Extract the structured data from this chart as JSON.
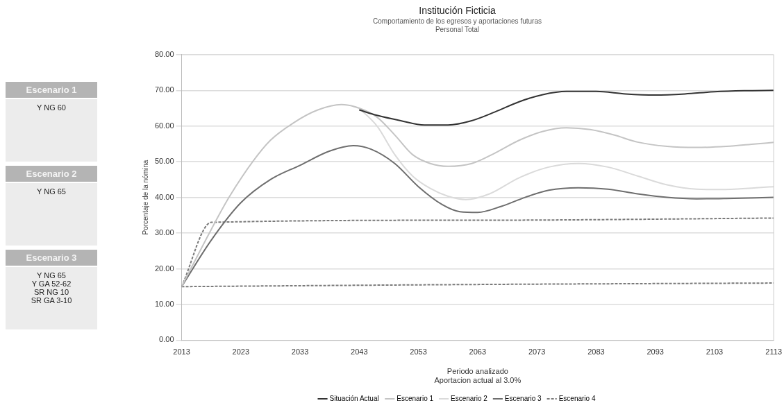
{
  "chart_data": {
    "type": "line",
    "title": "Institución Ficticia",
    "subtitle": "Comportamiento de los egresos y aportaciones futuras\nPersonal Total",
    "xlabel": "Periodo analizado\nAportacion actual al 3.0%",
    "ylabel": "Porcentaje de la nómina",
    "xlim": [
      2013,
      2113
    ],
    "xticks": [
      2013,
      2023,
      2033,
      2043,
      2053,
      2063,
      2073,
      2083,
      2093,
      2103,
      2113
    ],
    "ylim": [
      0,
      80
    ],
    "yticks": [
      {
        "value": 0,
        "label": "0.00"
      },
      {
        "value": 10,
        "label": "10.00"
      },
      {
        "value": 20,
        "label": "20.00"
      },
      {
        "value": 30,
        "label": "30.00"
      },
      {
        "value": 40,
        "label": "40.00"
      },
      {
        "value": 50,
        "label": "50.00"
      },
      {
        "value": 60,
        "label": "60.00"
      },
      {
        "value": 70,
        "label": "70.00"
      },
      {
        "value": 80,
        "label": "80.00"
      }
    ],
    "grid": "y",
    "legend": "bottom",
    "marker": "none",
    "series": [
      {
        "name": "Situación Actual",
        "color": "#333333",
        "line_style": "solid",
        "x": [
          2043,
          2046,
          2050,
          2054,
          2058,
          2062,
          2066,
          2070,
          2074,
          2078,
          2083,
          2088,
          2093,
          2098,
          2103,
          2108,
          2113
        ],
        "values": [
          64.5,
          63,
          61.5,
          60.3,
          60.3,
          61.5,
          64,
          66.8,
          68.8,
          69.7,
          69.7,
          69,
          68.7,
          69,
          69.6,
          69.9,
          70
        ]
      },
      {
        "name": "Escenario 1",
        "color": "#c4c4c4",
        "line_style": "solid",
        "x": [
          2013,
          2018,
          2021,
          2025,
          2028,
          2032,
          2036,
          2040,
          2043,
          2046,
          2049,
          2052,
          2055,
          2058,
          2062,
          2066,
          2070,
          2074,
          2078,
          2082,
          2086,
          2090,
          2095,
          2100,
          2105,
          2110,
          2113
        ],
        "values": [
          15,
          31,
          40,
          50,
          56,
          61,
          64.5,
          66,
          65,
          62.5,
          57.5,
          52,
          49.5,
          48.7,
          49.5,
          52.5,
          56,
          58.5,
          59.5,
          59,
          57.5,
          55.5,
          54.3,
          54,
          54.3,
          55,
          55.4
        ]
      },
      {
        "name": "Escenario 2",
        "color": "#dadada",
        "line_style": "solid",
        "x": [
          2043,
          2046,
          2049,
          2052,
          2055,
          2058,
          2061,
          2065,
          2070,
          2075,
          2080,
          2085,
          2090,
          2095,
          2100,
          2104,
          2110,
          2113
        ],
        "values": [
          65,
          60,
          52,
          46,
          42.5,
          40.3,
          39.4,
          41,
          45.5,
          48.5,
          49.5,
          48.5,
          46,
          43.5,
          42.3,
          42.2,
          42.7,
          43
        ]
      },
      {
        "name": "Escenario 3",
        "color": "#6e6e6e",
        "line_style": "solid",
        "x": [
          2013,
          2018,
          2023,
          2028,
          2033,
          2038,
          2042,
          2045,
          2049,
          2053,
          2057,
          2060,
          2063,
          2067,
          2071,
          2075,
          2080,
          2085,
          2090,
          2095,
          2100,
          2105,
          2113
        ],
        "values": [
          15,
          28,
          38.5,
          45,
          49,
          53,
          54.5,
          53.5,
          49.5,
          43,
          38,
          36,
          35.8,
          37.5,
          40,
          42,
          42.7,
          42.3,
          41,
          40,
          39.6,
          39.7,
          40
        ]
      },
      {
        "name": "Escenario 4",
        "color": "#7a7a7a",
        "line_style": "dashed",
        "x": [
          2013,
          2018,
          2063,
          2113
        ],
        "values": [
          15,
          33,
          33.6,
          34.2
        ]
      },
      {
        "color": "#7a7a7a",
        "line_style": "dashed",
        "x": [
          2013,
          2063,
          2113
        ],
        "values": [
          15,
          15.6,
          16
        ]
      }
    ],
    "annotations": [
      "Escenario 1",
      "Y NG 60",
      "Escenario 2",
      "Y NG 65",
      "Escenario 3",
      "Y NG 65\nY GA 52-62\nSR NG 10\nSR GA 3-10"
    ]
  }
}
